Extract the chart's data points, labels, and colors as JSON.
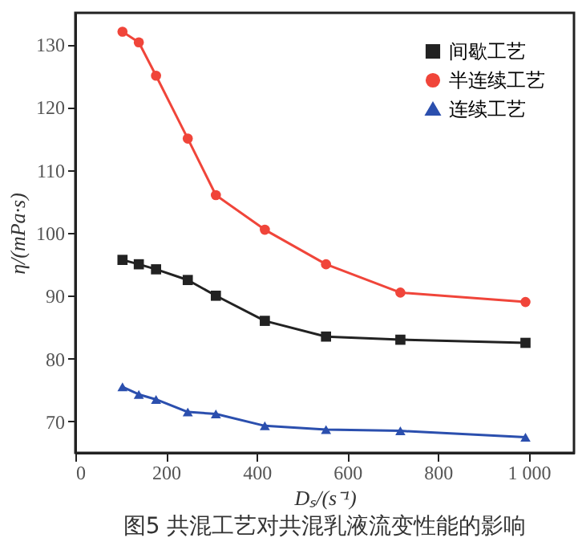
{
  "chart_data": {
    "type": "line",
    "title": "图5 共混工艺对共混乳液流变性能的影响",
    "xlabel": "Dₛ/(s⁻¹)",
    "ylabel": "η/(mPa·s)",
    "xlim": [
      0,
      1100
    ],
    "xticks": [
      0,
      200,
      400,
      600,
      800,
      {
        "value": 1000,
        "label": "1 000"
      }
    ],
    "ylim": [
      65,
      135
    ],
    "yticks": [
      70,
      80,
      90,
      100,
      110,
      120,
      130
    ],
    "grid": false,
    "legend": "top right",
    "line_style": "solid",
    "x": [
      104,
      140,
      178,
      248,
      310,
      418,
      553,
      717,
      993
    ],
    "series": [
      {
        "name": "间歇工艺",
        "color": "#222222",
        "marker": "square",
        "values": [
          95.7,
          95,
          94.2,
          92.5,
          90,
          86,
          83.5,
          83,
          82.5
        ]
      },
      {
        "name": "半连续工艺",
        "color": "#f0453a",
        "marker": "circle",
        "values": [
          132,
          130.3,
          125,
          115,
          106,
          100.5,
          95,
          90.5,
          89
        ]
      },
      {
        "name": "连续工艺",
        "color": "#2b4fae",
        "marker": "triangle",
        "values": [
          75.5,
          74.3,
          73.5,
          71.5,
          71.2,
          69.3,
          68.7,
          68.5,
          67.5
        ]
      }
    ]
  }
}
